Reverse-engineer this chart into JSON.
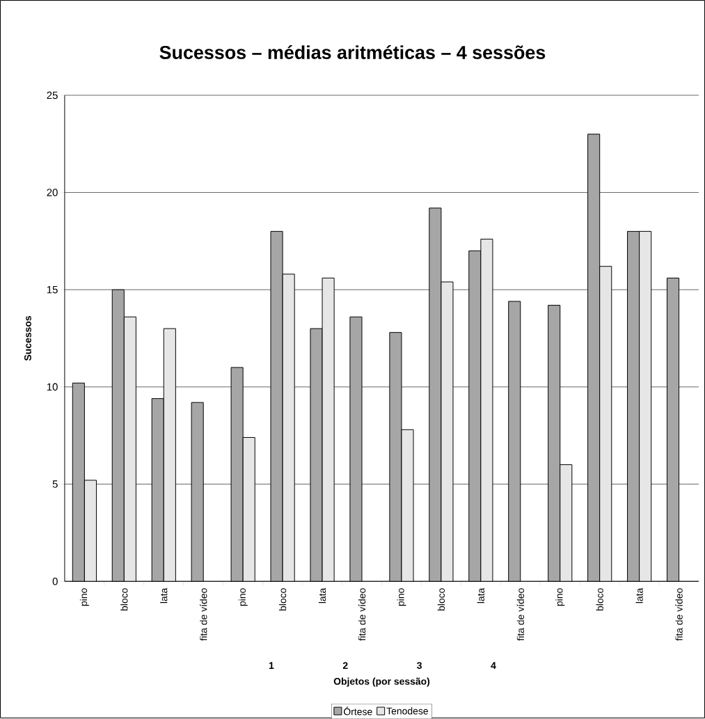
{
  "chart_data": {
    "type": "bar",
    "title": "Sucessos – médias aritméticas – 4 sessões",
    "xlabel": "Objetos (por sessão)",
    "ylabel": "Sucessos",
    "categories": [
      "pino",
      "bloco",
      "lata",
      "fita de vídeo",
      "pino",
      "bloco",
      "lata",
      "fita de vídeo",
      "pino",
      "bloco",
      "lata",
      "fita de vídeo",
      "pino",
      "bloco",
      "lata",
      "fita de vídeo"
    ],
    "series": [
      {
        "name": "Órtese",
        "color": "#a6a6a6",
        "values": [
          10.2,
          15,
          9.4,
          9.2,
          11,
          18,
          13,
          13.6,
          12.8,
          19.2,
          17,
          14.4,
          14.2,
          23,
          18,
          15.6
        ]
      },
      {
        "name": "Tenodese",
        "color": "#e6e6e6",
        "values": [
          5.2,
          13.6,
          13,
          null,
          7.4,
          15.8,
          15.6,
          null,
          7.8,
          15.4,
          17.6,
          null,
          6,
          16.2,
          18,
          null
        ]
      }
    ],
    "annotations": [
      "1",
      "2",
      "3",
      "4"
    ],
    "ylim": [
      0,
      25
    ],
    "yticks": [
      0,
      5,
      10,
      15,
      20,
      25
    ],
    "grid": "y",
    "legend": "bottom"
  }
}
